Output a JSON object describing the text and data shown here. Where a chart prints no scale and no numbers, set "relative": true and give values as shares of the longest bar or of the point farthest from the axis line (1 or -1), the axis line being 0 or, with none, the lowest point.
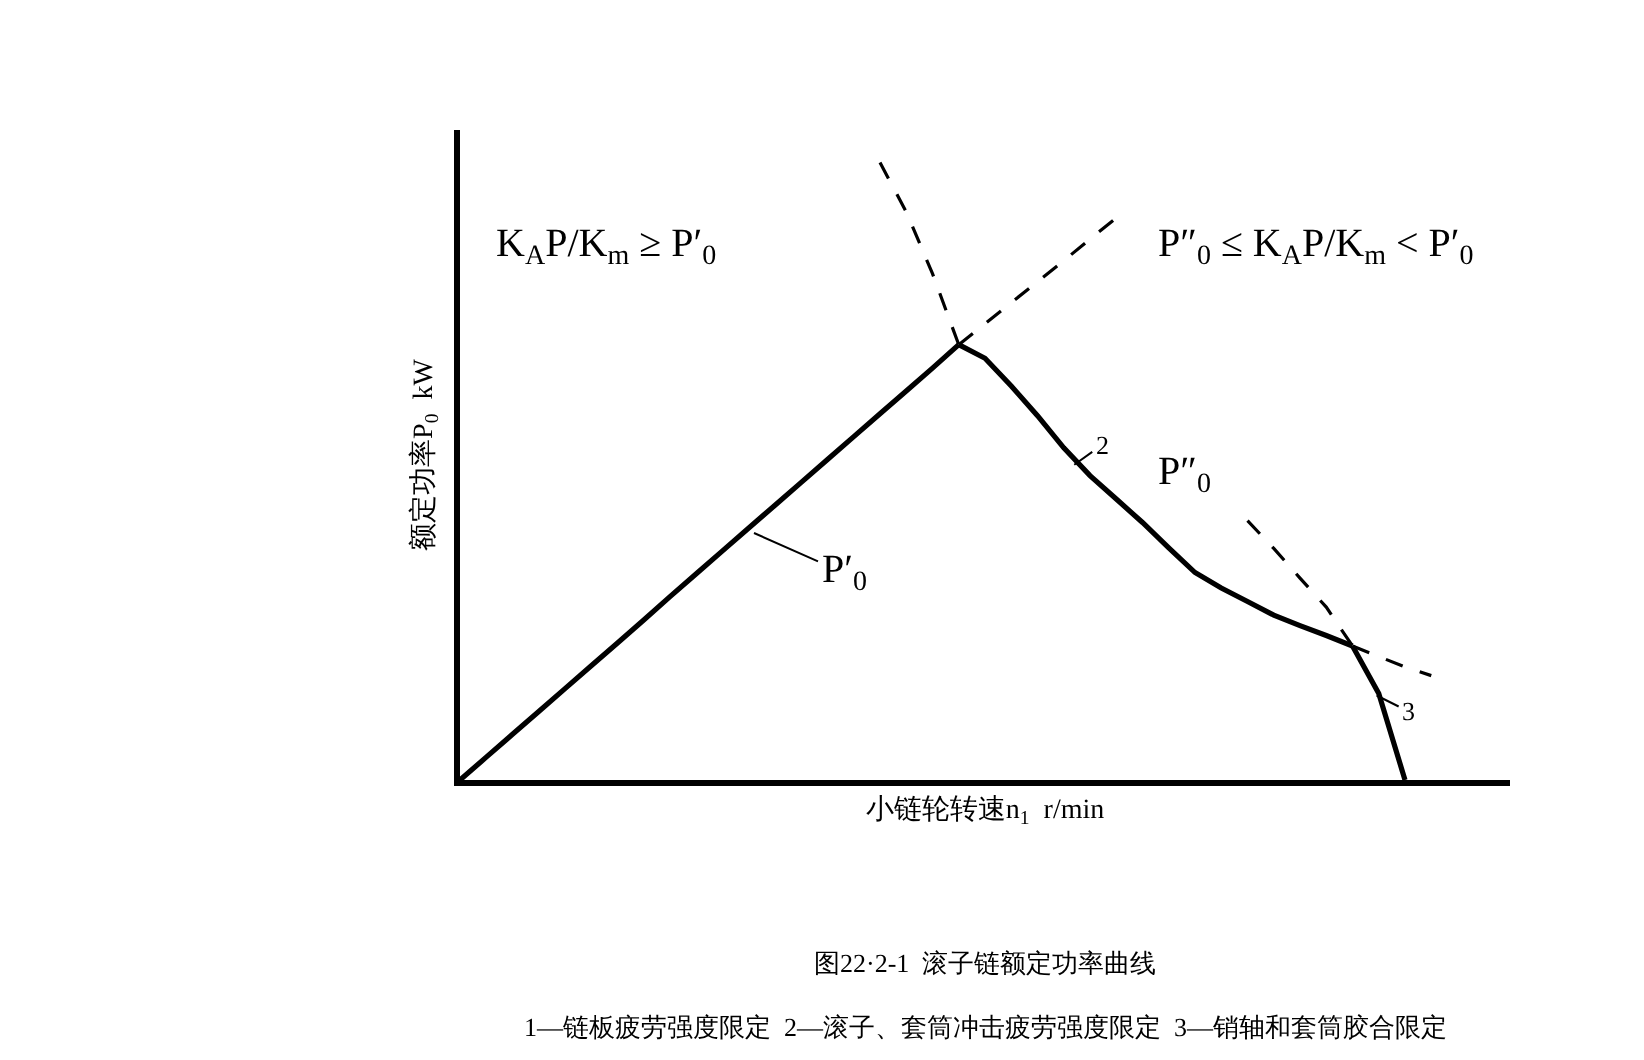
{
  "chart_data": {
    "type": "line",
    "relative": true,
    "xlabel": "小链轮转速n$_{1}$  r/min",
    "ylabel": "额定功率P$_{0}$  kW",
    "legend": false,
    "grid": false,
    "marker": "none",
    "categories": [
      null,
      null,
      null,
      null,
      null,
      null,
      null,
      null,
      null,
      null,
      null,
      null,
      null,
      null,
      null,
      null,
      null,
      null,
      null,
      null,
      null,
      null,
      null,
      null,
      null,
      null,
      null,
      null,
      null,
      null,
      null,
      null,
      null,
      null,
      null,
      null,
      null,
      null,
      null,
      null,
      null
    ],
    "series": [
      {
        "color": "#000000",
        "line_style": "solid",
        "values": [
          0,
          0.037,
          0.074,
          0.111,
          0.148,
          0.185,
          0.222,
          0.259,
          0.297,
          0.334,
          0.371,
          0.408,
          0.445,
          0.482,
          0.519,
          0.556,
          0.593,
          0.63,
          0.667,
          0.705,
          null,
          null,
          null,
          null,
          null,
          null,
          null,
          null,
          null,
          null,
          null,
          null,
          null,
          null,
          null,
          null,
          null,
          null,
          null,
          null,
          null
        ]
      },
      {
        "color": "#000000",
        "line_style": "dashed",
        "values": [
          null,
          null,
          null,
          null,
          null,
          null,
          null,
          null,
          null,
          null,
          null,
          null,
          null,
          null,
          null,
          null,
          null,
          null,
          null,
          0.705,
          0.739,
          0.773,
          0.807,
          0.841,
          0.876,
          0.91,
          null,
          null,
          null,
          null,
          null,
          null,
          null,
          null,
          null,
          null,
          null,
          null,
          null,
          null,
          null
        ]
      },
      {
        "color": "#000000",
        "line_style": "dashed",
        "values": [
          null,
          null,
          null,
          null,
          null,
          null,
          null,
          null,
          null,
          null,
          null,
          null,
          null,
          null,
          null,
          null,
          1,
          0.92,
          0.82,
          0.705,
          null,
          null,
          null,
          null,
          null,
          null,
          null,
          null,
          null,
          null,
          null,
          null,
          null,
          null,
          null,
          null,
          null,
          null,
          null,
          null,
          null
        ]
      },
      {
        "color": "#000000",
        "line_style": "solid",
        "values": [
          null,
          null,
          null,
          null,
          null,
          null,
          null,
          null,
          null,
          null,
          null,
          null,
          null,
          null,
          null,
          null,
          null,
          null,
          null,
          0.705,
          0.683,
          0.638,
          0.59,
          0.538,
          0.493,
          0.455,
          0.417,
          0.376,
          0.336,
          0.311,
          0.289,
          0.267,
          0.25,
          0.234,
          0.217,
          null,
          null,
          null,
          null,
          null,
          null
        ]
      },
      {
        "color": "#000000",
        "line_style": "dashed",
        "values": [
          null,
          null,
          null,
          null,
          null,
          null,
          null,
          null,
          null,
          null,
          null,
          null,
          null,
          null,
          null,
          null,
          null,
          null,
          null,
          null,
          null,
          null,
          null,
          null,
          null,
          null,
          null,
          null,
          null,
          null,
          null,
          null,
          null,
          null,
          0.217,
          0.2,
          0.183,
          0.169,
          null,
          null,
          null
        ]
      },
      {
        "color": "#000000",
        "line_style": "dashed",
        "values": [
          null,
          null,
          null,
          null,
          null,
          null,
          null,
          null,
          null,
          null,
          null,
          null,
          null,
          null,
          null,
          null,
          null,
          null,
          null,
          null,
          null,
          null,
          null,
          null,
          null,
          null,
          null,
          null,
          null,
          null,
          0.42,
          0.375,
          0.327,
          0.28,
          0.217,
          null,
          null,
          null,
          null,
          null,
          null
        ]
      },
      {
        "color": "#000000",
        "line_style": "solid",
        "values": [
          null,
          null,
          null,
          null,
          null,
          null,
          null,
          null,
          null,
          null,
          null,
          null,
          null,
          null,
          null,
          null,
          null,
          null,
          null,
          null,
          null,
          null,
          null,
          null,
          null,
          null,
          null,
          null,
          null,
          null,
          null,
          null,
          null,
          null,
          0.217,
          0.14,
          0,
          null,
          null,
          null,
          null
        ]
      }
    ],
    "annotations": [
      "K$_{A}$P/K$_{m}$ ≥ P′$_{0}$",
      "P″$_{0}$ ≤ K$_{A}$P/K$_{m}$ < P′$_{0}$",
      "P′$_{0}$",
      "2",
      "P″$_{0}$",
      "3",
      "图22·2-1  滚子链额定功率曲线",
      "1—链板疲劳强度限定  2—滚子、套筒冲击疲劳强度限定  3—销轴和套筒胶合限定"
    ]
  }
}
